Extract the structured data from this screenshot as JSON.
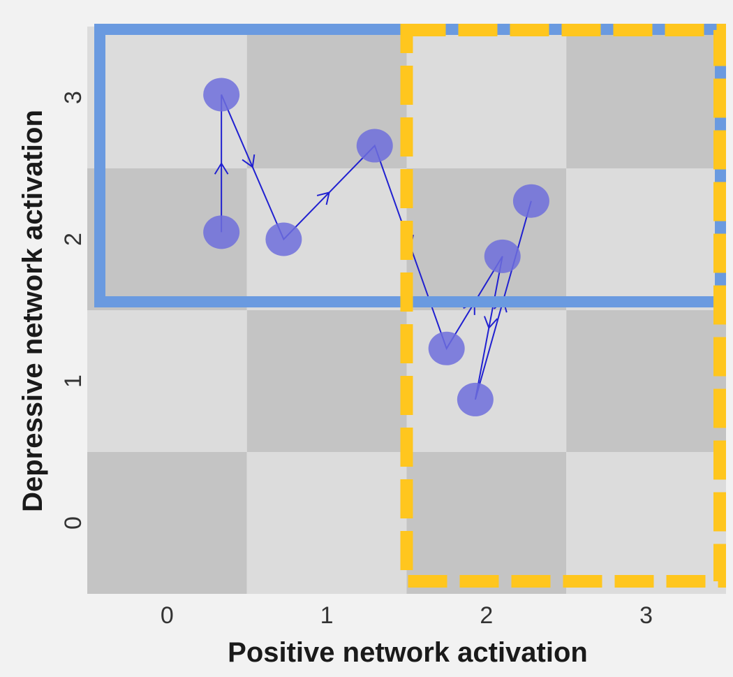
{
  "chart_data": {
    "type": "scatter",
    "title": "",
    "xlabel": "Positive network activation",
    "ylabel": "Depressive network activation",
    "xlim": [
      -0.5,
      3.5
    ],
    "ylim": [
      -0.5,
      3.5
    ],
    "x_ticks": [
      "0",
      "1",
      "2",
      "3"
    ],
    "y_ticks": [
      "0",
      "1",
      "2",
      "3"
    ],
    "background": "checkerboard grid cells (alternating light and dark gray)",
    "points": [
      {
        "x": 0.34,
        "y": 2.05
      },
      {
        "x": 0.34,
        "y": 3.02
      },
      {
        "x": 0.73,
        "y": 2.0
      },
      {
        "x": 1.3,
        "y": 2.66
      },
      {
        "x": 1.75,
        "y": 1.23
      },
      {
        "x": 2.1,
        "y": 1.88
      },
      {
        "x": 1.93,
        "y": 0.87
      },
      {
        "x": 2.28,
        "y": 2.27
      }
    ],
    "path_order": [
      0,
      1,
      2,
      3,
      4,
      5,
      6,
      7
    ],
    "highlight_regions": [
      {
        "x": [
          -0.5,
          3.5
        ],
        "y": [
          1.5,
          3.5
        ],
        "style": "solid",
        "color": "#6a9ae0"
      },
      {
        "x": [
          1.5,
          3.5
        ],
        "y": [
          -0.5,
          3.5
        ],
        "style": "dashed",
        "color": "#ffc61e"
      }
    ],
    "colors": {
      "point": "#6f6fdc",
      "path": "#2020d0",
      "cell_light": "#dcdcdc",
      "cell_dark": "#c4c4c4"
    }
  }
}
